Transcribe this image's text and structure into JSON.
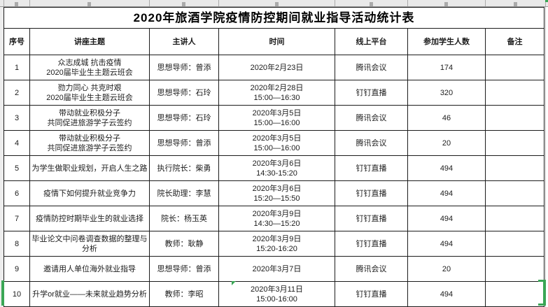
{
  "spreadsheet": {
    "selection_color": "#3aa655"
  },
  "table": {
    "title": "2020年旅酒学院疫情防控期间就业指导活动统计表",
    "columns": [
      "序号",
      "讲座主题",
      "主讲人",
      "时间",
      "线上平台",
      "参加学生人数",
      "备注"
    ],
    "rows": [
      {
        "no": "1",
        "topic": "众志成城 抗击疫情\n2020届毕业生主题云班会",
        "speaker": "思想导师：曾添",
        "time": "2020年2月23日",
        "platform": "腾讯会议",
        "students": "174",
        "remark": ""
      },
      {
        "no": "2",
        "topic": "勠力同心 共克时艰\n2020届毕业生主题云班会",
        "speaker": "思想导师：石玲",
        "time": "2020年2月28日\n15:00—16:30",
        "platform": "钉钉直播",
        "students": "320",
        "remark": ""
      },
      {
        "no": "3",
        "topic": "带动就业积极分子\n共同促进旅游学子云签约",
        "speaker": "思想导师：石玲",
        "time": "2020年3月5日\n15:00—16:00",
        "platform": "腾讯会议",
        "students": "46",
        "remark": ""
      },
      {
        "no": "4",
        "topic": "带动就业积极分子\n共同促进旅游学子云签约",
        "speaker": "思想导师：曾添",
        "time": "2020年3月5日\n15:00—16:00",
        "platform": "腾讯会议",
        "students": "20",
        "remark": ""
      },
      {
        "no": "5",
        "topic": "为学生做职业规划，开启人生之路",
        "speaker": "执行院长：柴勇",
        "time": "2020年3月6日\n14:30-15:20",
        "platform": "钉钉直播",
        "students": "494",
        "remark": ""
      },
      {
        "no": "6",
        "topic": "疫情下如何提升就业竞争力",
        "speaker": "院长助理：李慧",
        "time": "2020年3月6日\n15:20—15:50",
        "platform": "钉钉直播",
        "students": "494",
        "remark": ""
      },
      {
        "no": "7",
        "topic": "疫情防控时期毕业生的就业选择",
        "speaker": "院长：杨玉英",
        "time": "2020年3月9日\n14:30—15:20",
        "platform": "钉钉直播",
        "students": "494",
        "remark": ""
      },
      {
        "no": "8",
        "topic": "毕业论文中问卷调查数据的整理与分析",
        "speaker": "教师：耿静",
        "time": "2020年3月9日\n15:20-16:20",
        "platform": "钉钉直播",
        "students": "494",
        "remark": ""
      },
      {
        "no": "9",
        "topic": "邀请用人单位海外就业指导",
        "speaker": "思想导师：曾添",
        "time": "2020年3月7日",
        "platform": "腾讯会议",
        "students": "20",
        "remark": ""
      },
      {
        "no": "10",
        "topic": "升学or就业——未来就业趋势分析",
        "speaker": "教师：李昭",
        "time": "2020年3月11日\n15:00-16:00",
        "platform": "钉钉直播",
        "students": "494",
        "remark": ""
      }
    ]
  }
}
